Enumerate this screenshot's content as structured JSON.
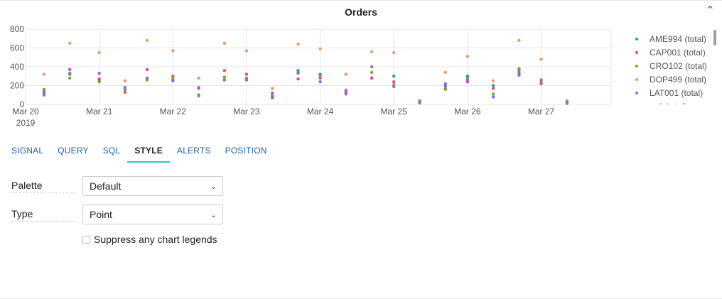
{
  "panel": {
    "title": "Orders",
    "collapse_icon": "chevron-up-icon"
  },
  "chart_data": {
    "type": "scatter",
    "title": "Orders",
    "xlabel": "",
    "ylabel": "",
    "ylim": [
      0,
      800
    ],
    "yticks": [
      0,
      200,
      400,
      600,
      800
    ],
    "grid": true,
    "legend_position": "right",
    "x_tick_labels": [
      {
        "x": 0,
        "label": "Mar 20",
        "sub": "2019"
      },
      {
        "x": 1,
        "label": "Mar 21",
        "sub": ""
      },
      {
        "x": 2,
        "label": "Mar 22",
        "sub": ""
      },
      {
        "x": 3,
        "label": "Mar 23",
        "sub": ""
      },
      {
        "x": 4,
        "label": "Mar 24",
        "sub": ""
      },
      {
        "x": 5,
        "label": "Mar 25",
        "sub": ""
      },
      {
        "x": 6,
        "label": "Mar 26",
        "sub": ""
      },
      {
        "x": 7,
        "label": "Mar 27",
        "sub": ""
      }
    ],
    "x": [
      0.25,
      0.6,
      1.0,
      1.35,
      1.65,
      2.0,
      2.35,
      2.7,
      3.0,
      3.35,
      3.7,
      4.0,
      4.35,
      4.7,
      5.0,
      5.35,
      5.7,
      6.0,
      6.35,
      6.7,
      7.0,
      7.35
    ],
    "series": [
      {
        "name": "AME994 (total)",
        "color": "#17a2a2",
        "values": [
          140,
          330,
          260,
          170,
          270,
          260,
          100,
          290,
          260,
          70,
          360,
          320,
          130,
          280,
          300,
          20,
          200,
          300,
          200,
          330,
          230,
          15
        ]
      },
      {
        "name": "CAP001 (total)",
        "color": "#e8449a",
        "values": [
          120,
          370,
          270,
          130,
          370,
          300,
          170,
          360,
          320,
          90,
          270,
          280,
          150,
          280,
          240,
          25,
          170,
          240,
          170,
          360,
          220,
          20
        ]
      },
      {
        "name": "CRO102 (total)",
        "color": "#7ea825",
        "values": [
          160,
          280,
          240,
          150,
          260,
          280,
          90,
          290,
          280,
          110,
          330,
          300,
          110,
          340,
          210,
          15,
          160,
          280,
          110,
          380,
          250,
          10
        ]
      },
      {
        "name": "DOP499 (total)",
        "color": "#f0976c",
        "values": [
          320,
          650,
          550,
          250,
          680,
          570,
          280,
          650,
          570,
          170,
          640,
          590,
          320,
          560,
          550,
          40,
          340,
          510,
          250,
          680,
          480,
          40
        ]
      },
      {
        "name": "LAT001 (total)",
        "color": "#8b6be0",
        "values": [
          100,
          320,
          330,
          180,
          280,
          250,
          180,
          260,
          260,
          120,
          340,
          240,
          120,
          400,
          190,
          30,
          220,
          260,
          80,
          310,
          260,
          25
        ]
      }
    ],
    "legend_clipped_entry": "null (total)"
  },
  "tabs": [
    {
      "label": "SIGNAL",
      "active": false
    },
    {
      "label": "QUERY",
      "active": false
    },
    {
      "label": "SQL",
      "active": false
    },
    {
      "label": "STYLE",
      "active": true
    },
    {
      "label": "ALERTS",
      "active": false
    },
    {
      "label": "POSITION",
      "active": false
    }
  ],
  "form": {
    "palette": {
      "label": "Palette",
      "value": "Default"
    },
    "type": {
      "label": "Type",
      "value": "Point"
    },
    "suppress_legends": {
      "label": "Suppress any chart legends",
      "checked": false
    }
  },
  "colors": {
    "accent": "#2ec4c4",
    "link": "#1f63a3",
    "grid": "#e5e5e5"
  }
}
